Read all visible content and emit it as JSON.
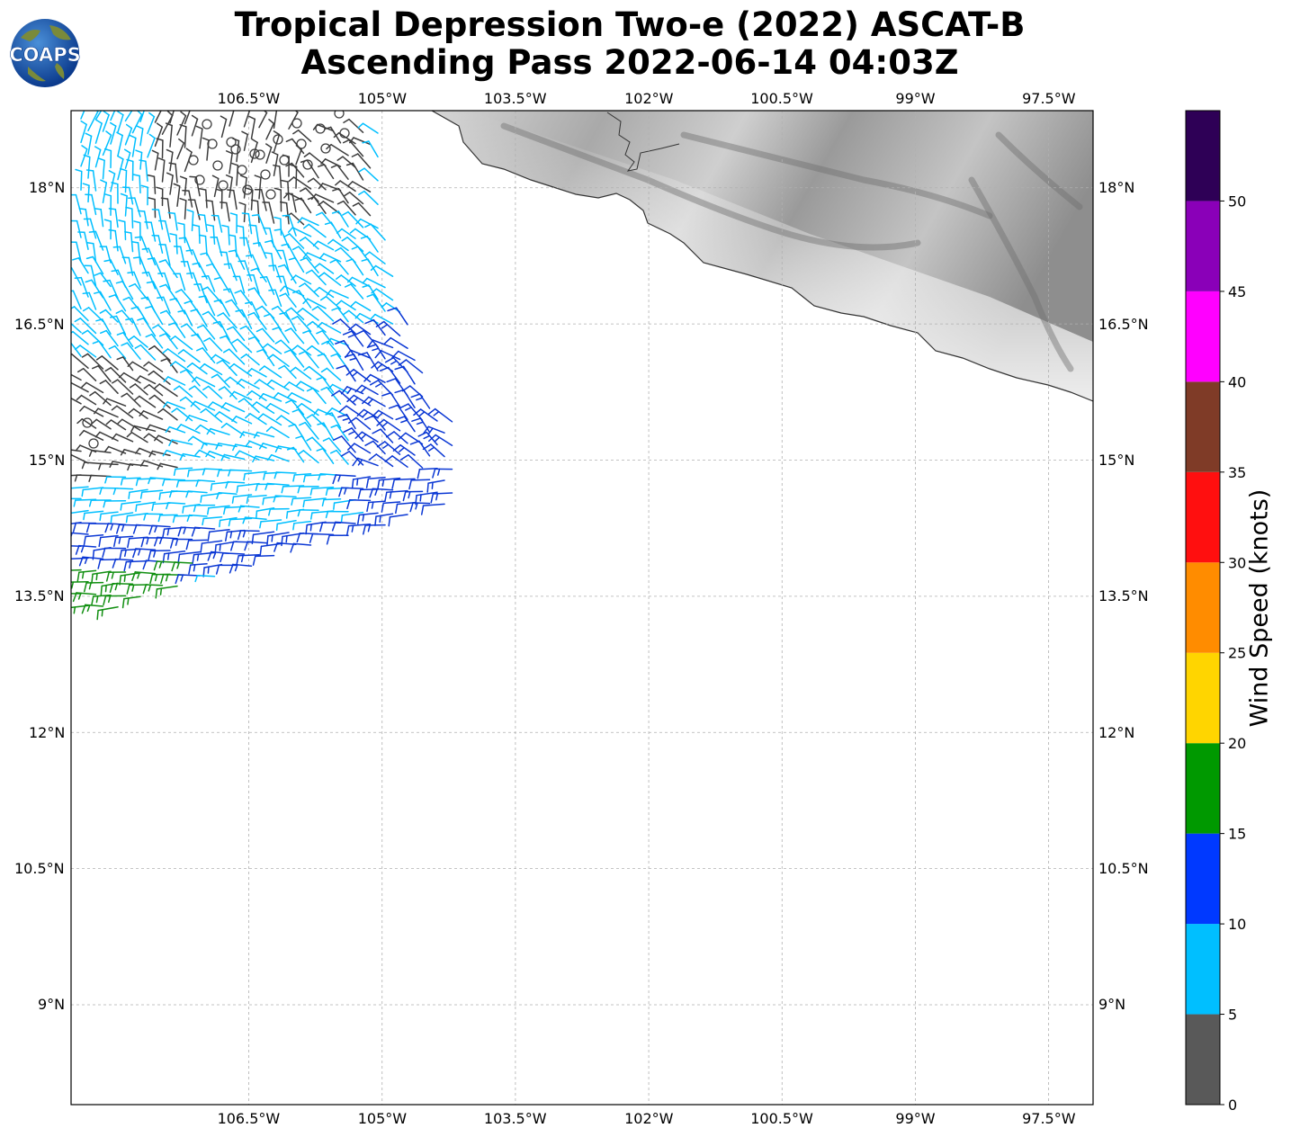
{
  "title": {
    "line1": "Tropical Depression Two-e (2022) ASCAT-B",
    "line2": "Ascending Pass 2022-06-14 04:03Z"
  },
  "logo": {
    "text": "COAPS"
  },
  "map": {
    "lon_range": [
      -108.5,
      -97.0
    ],
    "lat_range": [
      7.9,
      18.85
    ],
    "lon_ticks": [
      "106.5°W",
      "105°W",
      "103.5°W",
      "102°W",
      "100.5°W",
      "99°W",
      "97.5°W"
    ],
    "lon_tick_values": [
      -106.5,
      -105,
      -103.5,
      -102,
      -100.5,
      -99,
      -97.5
    ],
    "lat_ticks": [
      "18°N",
      "16.5°N",
      "15°N",
      "13.5°N",
      "12°N",
      "10.5°N",
      "9°N"
    ],
    "lat_tick_values": [
      18,
      16.5,
      15,
      13.5,
      12,
      10.5,
      9
    ],
    "gridlines": true,
    "land_shading": "grayscale terrain"
  },
  "colorbar": {
    "label": "Wind Speed (knots)",
    "ticks": [
      "0",
      "5",
      "10",
      "15",
      "20",
      "25",
      "30",
      "35",
      "40",
      "45",
      "50"
    ],
    "colors": [
      "#595959",
      "#00bfff",
      "#0039ff",
      "#009900",
      "#ffd500",
      "#ff8c00",
      "#ff0f0f",
      "#7f3b27",
      "#ff00ff",
      "#8a00b8",
      "#2e0056"
    ]
  },
  "wind_barbs": {
    "calm_color": "#3c3c3c",
    "colors_by_band": {
      "0-5": "#3c3c3c",
      "5-10": "#00bfff",
      "10-15": "#0a37d4",
      "15-20": "#118f11"
    }
  }
}
